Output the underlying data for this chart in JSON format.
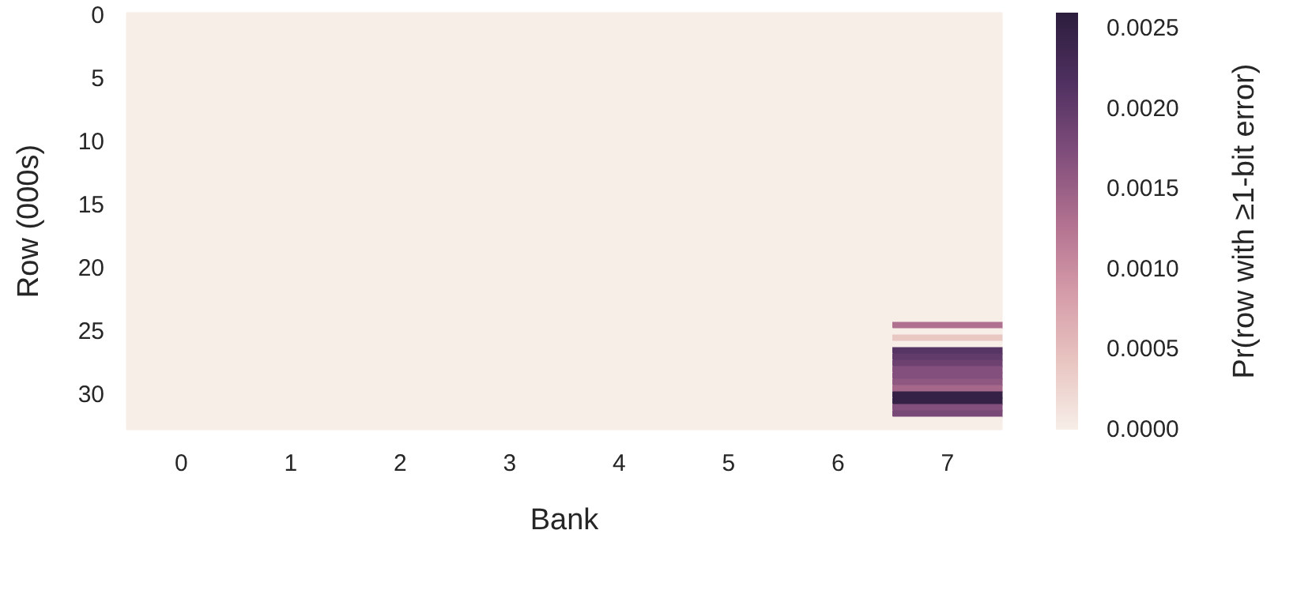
{
  "chart_data": {
    "type": "heatmap",
    "xlabel": "Bank",
    "ylabel": "Row (000s)",
    "clabel": "Pr(row with ≥1-bit error)",
    "categories": [
      "0",
      "1",
      "2",
      "3",
      "4",
      "5",
      "6",
      "7"
    ],
    "y_categories": [
      "0",
      null,
      null,
      null,
      null,
      null,
      null,
      null,
      null,
      null,
      "5",
      null,
      null,
      null,
      null,
      null,
      null,
      null,
      null,
      null,
      "10",
      null,
      null,
      null,
      null,
      null,
      null,
      null,
      null,
      null,
      "15",
      null,
      null,
      null,
      null,
      null,
      null,
      null,
      null,
      null,
      "20",
      null,
      null,
      null,
      null,
      null,
      null,
      null,
      null,
      null,
      "25",
      null,
      null,
      null,
      null,
      null,
      null,
      null,
      null,
      null,
      "30",
      null,
      null,
      null,
      null,
      null
    ],
    "cells": [
      [
        0,
        0,
        0,
        0,
        0,
        0,
        0,
        0
      ],
      [
        0,
        0,
        0,
        0,
        0,
        0,
        0,
        0
      ],
      [
        0,
        0,
        0,
        0,
        0,
        0,
        0,
        0
      ],
      [
        0,
        0,
        0,
        0,
        0,
        0,
        0,
        0
      ],
      [
        0,
        0,
        0,
        0,
        0,
        0,
        0,
        0
      ],
      [
        0,
        0,
        0,
        0,
        0,
        0,
        0,
        0
      ],
      [
        0,
        0,
        0,
        0,
        0,
        0,
        0,
        0
      ],
      [
        0,
        0,
        0,
        0,
        0,
        0,
        0,
        0
      ],
      [
        0,
        0,
        0,
        0,
        0,
        0,
        0,
        0
      ],
      [
        0,
        0,
        0,
        0,
        0,
        0,
        0,
        0
      ],
      [
        0,
        0,
        0,
        0,
        0,
        0,
        0,
        0
      ],
      [
        0,
        0,
        0,
        0,
        0,
        0,
        0,
        0
      ],
      [
        0,
        0,
        0,
        0,
        0,
        0,
        0,
        0
      ],
      [
        0,
        0,
        0,
        0,
        0,
        0,
        0,
        0
      ],
      [
        0,
        0,
        0,
        0,
        0,
        0,
        0,
        0
      ],
      [
        0,
        0,
        0,
        0,
        0,
        0,
        0,
        0
      ],
      [
        0,
        0,
        0,
        0,
        0,
        0,
        0,
        0
      ],
      [
        0,
        0,
        0,
        0,
        0,
        0,
        0,
        0
      ],
      [
        0,
        0,
        0,
        0,
        0,
        0,
        0,
        0
      ],
      [
        0,
        0,
        0,
        0,
        0,
        0,
        0,
        0
      ],
      [
        0,
        0,
        0,
        0,
        0,
        0,
        0,
        0
      ],
      [
        0,
        0,
        0,
        0,
        0,
        0,
        0,
        0
      ],
      [
        0,
        0,
        0,
        0,
        0,
        0,
        0,
        0
      ],
      [
        0,
        0,
        0,
        0,
        0,
        0,
        0,
        0
      ],
      [
        0,
        0,
        0,
        0,
        0,
        0,
        0,
        0
      ],
      [
        0,
        0,
        0,
        0,
        0,
        0,
        0,
        0
      ],
      [
        0,
        0,
        0,
        0,
        0,
        0,
        0,
        0
      ],
      [
        0,
        0,
        0,
        0,
        0,
        0,
        0,
        0
      ],
      [
        0,
        0,
        0,
        0,
        0,
        0,
        0,
        0
      ],
      [
        0,
        0,
        0,
        0,
        0,
        0,
        0,
        0
      ],
      [
        0,
        0,
        0,
        0,
        0,
        0,
        0,
        0
      ],
      [
        0,
        0,
        0,
        0,
        0,
        0,
        0,
        0
      ],
      [
        0,
        0,
        0,
        0,
        0,
        0,
        0,
        0
      ],
      [
        0,
        0,
        0,
        0,
        0,
        0,
        0,
        0
      ],
      [
        0,
        0,
        0,
        0,
        0,
        0,
        0,
        0
      ],
      [
        0,
        0,
        0,
        0,
        0,
        0,
        0,
        0
      ],
      [
        0,
        0,
        0,
        0,
        0,
        0,
        0,
        0
      ],
      [
        0,
        0,
        0,
        0,
        0,
        0,
        0,
        0
      ],
      [
        0,
        0,
        0,
        0,
        0,
        0,
        0,
        0
      ],
      [
        0,
        0,
        0,
        0,
        0,
        0,
        0,
        0
      ],
      [
        0,
        0,
        0,
        0,
        0,
        0,
        0,
        0
      ],
      [
        0,
        0,
        0,
        0,
        0,
        0,
        0,
        0
      ],
      [
        0,
        0,
        0,
        0,
        0,
        0,
        0,
        0
      ],
      [
        0,
        0,
        0,
        0,
        0,
        0,
        0,
        0
      ],
      [
        0,
        0,
        0,
        0,
        0,
        0,
        0,
        0
      ],
      [
        0,
        0,
        0,
        0,
        0,
        0,
        0,
        0
      ],
      [
        0,
        0,
        0,
        0,
        0,
        0,
        0,
        0
      ],
      [
        0,
        0,
        0,
        0,
        0,
        0,
        0,
        0
      ],
      [
        0,
        0,
        0,
        0,
        0,
        0,
        0,
        0
      ],
      [
        0,
        0,
        0,
        0,
        0,
        0,
        0,
        0.0013
      ],
      [
        0,
        0,
        0,
        0,
        0,
        0,
        0,
        0
      ],
      [
        0,
        0,
        0,
        0,
        0,
        0,
        0,
        0.0004
      ],
      [
        0,
        0,
        0,
        0,
        0,
        0,
        0,
        0
      ],
      [
        0,
        0,
        0,
        0,
        0,
        0,
        0,
        0.0021
      ],
      [
        0,
        0,
        0,
        0,
        0,
        0,
        0,
        0.002
      ],
      [
        0,
        0,
        0,
        0,
        0,
        0,
        0,
        0.0019
      ],
      [
        0,
        0,
        0,
        0,
        0,
        0,
        0,
        0.0017
      ],
      [
        0,
        0,
        0,
        0,
        0,
        0,
        0,
        0.0017
      ],
      [
        0,
        0,
        0,
        0,
        0,
        0,
        0,
        0.0016
      ],
      [
        0,
        0,
        0,
        0,
        0,
        0,
        0,
        0.0014
      ],
      [
        0,
        0,
        0,
        0,
        0,
        0,
        0,
        0.0025
      ],
      [
        0,
        0,
        0,
        0,
        0,
        0,
        0,
        0.0025
      ],
      [
        0,
        0,
        0,
        0,
        0,
        0,
        0,
        0.0017
      ],
      [
        0,
        0,
        0,
        0,
        0,
        0,
        0,
        0.0018
      ],
      [
        0,
        0,
        0,
        0,
        0,
        0,
        0,
        0
      ],
      [
        0,
        0,
        0,
        0,
        0,
        0,
        0,
        0
      ]
    ],
    "clim": [
      0,
      0.0026
    ],
    "cticks": [
      {
        "value": 0,
        "label": "0.0000"
      },
      {
        "value": 0.0005,
        "label": "0.0005"
      },
      {
        "value": 0.001,
        "label": "0.0010"
      },
      {
        "value": 0.0015,
        "label": "0.0015"
      },
      {
        "value": 0.002,
        "label": "0.0020"
      },
      {
        "value": 0.0025,
        "label": "0.0025"
      }
    ]
  }
}
